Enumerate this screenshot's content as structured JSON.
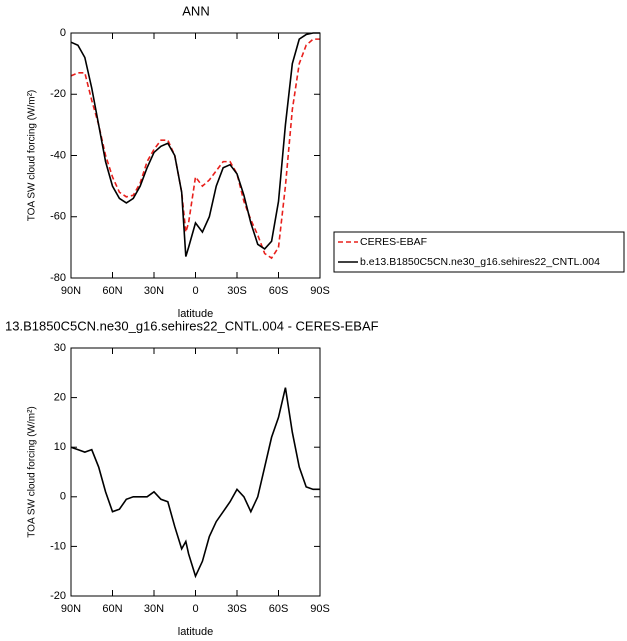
{
  "chart_data": [
    {
      "type": "line",
      "title": "ANN",
      "xlabel": "latitude",
      "ylabel": "TOA SW cloud forcing (W/m²)",
      "x": [
        90,
        85,
        80,
        75,
        70,
        65,
        60,
        55,
        50,
        45,
        40,
        35,
        30,
        25,
        20,
        15,
        10,
        7,
        5,
        0,
        -5,
        -10,
        -15,
        -20,
        -25,
        -30,
        -35,
        -40,
        -45,
        -50,
        -55,
        -60,
        -65,
        -70,
        -75,
        -80,
        -85,
        -90
      ],
      "xlim": [
        90,
        -90
      ],
      "xticks": [
        {
          "value": 90,
          "label": "90N"
        },
        {
          "value": 60,
          "label": "60N"
        },
        {
          "value": 30,
          "label": "30N"
        },
        0,
        {
          "value": -30,
          "label": "30S"
        },
        {
          "value": -60,
          "label": "60S"
        },
        {
          "value": -90,
          "label": "90S"
        }
      ],
      "ylim": [
        -80,
        0
      ],
      "yticks": [
        0,
        -20,
        -40,
        -60,
        -80
      ],
      "legend": "right",
      "series": [
        {
          "name": "CERES-EBAF",
          "color": "#e8201c",
          "dashed": true,
          "values": [
            -14,
            -13,
            -13,
            -22,
            -30,
            -40,
            -47,
            -52,
            -53.5,
            -53,
            -49,
            -42,
            -38,
            -35,
            -35,
            -40,
            -52,
            -65,
            -62,
            -47,
            -50,
            -48,
            -45,
            -42,
            -42,
            -46,
            -55,
            -61,
            -66,
            -72,
            -73.5,
            -70,
            -50,
            -25,
            -10,
            -4,
            -2,
            -2
          ]
        },
        {
          "name": "b.e13.B1850C5CN.ne30_g16.sehires22_CNTL.004",
          "color": "#000000",
          "dashed": false,
          "values": [
            -3,
            -4,
            -8,
            -18,
            -30,
            -42,
            -50,
            -54,
            -55.5,
            -54,
            -50,
            -44,
            -39,
            -37,
            -36,
            -40,
            -52,
            -73,
            -70,
            -62,
            -65,
            -60,
            -50,
            -44,
            -43,
            -46,
            -53,
            -62,
            -69,
            -70.5,
            -68,
            -55,
            -30,
            -10,
            -2,
            -0.5,
            0,
            0
          ]
        }
      ]
    },
    {
      "type": "line",
      "title": "13.B1850C5CN.ne30_g16.sehires22_CNTL.004 - CERES-EBAF",
      "xlabel": "latitude",
      "ylabel": "TOA SW cloud forcing (W/m²)",
      "x": [
        90,
        85,
        80,
        75,
        70,
        65,
        60,
        55,
        50,
        45,
        40,
        35,
        30,
        25,
        20,
        15,
        10,
        7,
        5,
        0,
        -5,
        -10,
        -15,
        -20,
        -25,
        -30,
        -35,
        -40,
        -45,
        -50,
        -55,
        -60,
        -65,
        -70,
        -75,
        -80,
        -85,
        -90
      ],
      "xlim": [
        90,
        -90
      ],
      "xticks": [
        {
          "value": 90,
          "label": "90N"
        },
        {
          "value": 60,
          "label": "60N"
        },
        {
          "value": 30,
          "label": "30N"
        },
        0,
        {
          "value": -30,
          "label": "30S"
        },
        {
          "value": -60,
          "label": "60S"
        },
        {
          "value": -90,
          "label": "90S"
        }
      ],
      "ylim": [
        -20,
        30
      ],
      "yticks": [
        -20,
        -10,
        0,
        10,
        20,
        30
      ],
      "series": [
        {
          "color": "#000000",
          "dashed": false,
          "values": [
            10,
            9.5,
            9,
            9.5,
            6,
            1,
            -3,
            -2.5,
            -0.5,
            0,
            0,
            0,
            1,
            -0.5,
            -1,
            -6,
            -10.5,
            -9,
            -11.5,
            -16,
            -13,
            -8,
            -5,
            -3,
            -1,
            1.5,
            0,
            -3,
            0,
            6,
            12,
            16,
            22,
            13,
            6,
            2,
            1.5,
            1.5
          ]
        }
      ]
    }
  ]
}
